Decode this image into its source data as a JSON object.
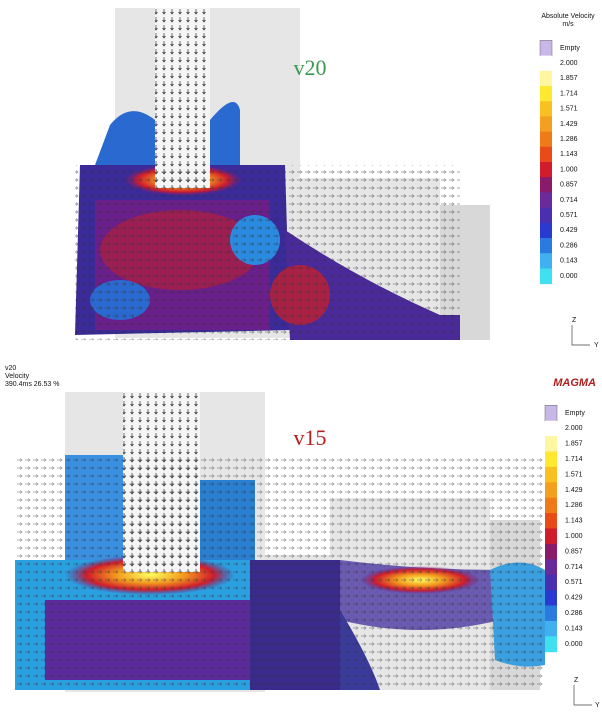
{
  "top": {
    "label": "v20",
    "legend": {
      "title": "Absolute Velocity",
      "unit": "m/s",
      "labels": [
        "Empty",
        "2.000",
        "1.857",
        "1.714",
        "1.571",
        "1.429",
        "1.286",
        "1.143",
        "1.000",
        "0.857",
        "0.714",
        "0.571",
        "0.429",
        "0.286",
        "0.143",
        "0.000"
      ]
    },
    "axes": [
      "Z",
      "Y"
    ]
  },
  "info": {
    "name": "v20",
    "quantity": "Velocity",
    "time": "390.4ms 26.53 %"
  },
  "logo": "MAGMA",
  "bottom": {
    "label": "v15",
    "legend": {
      "labels": [
        "Empty",
        "2.000",
        "1.857",
        "1.714",
        "1.571",
        "1.429",
        "1.286",
        "1.143",
        "1.000",
        "0.857",
        "0.714",
        "0.571",
        "0.429",
        "0.286",
        "0.143",
        "0.000"
      ]
    },
    "axes": [
      "Z",
      "Y"
    ]
  }
}
